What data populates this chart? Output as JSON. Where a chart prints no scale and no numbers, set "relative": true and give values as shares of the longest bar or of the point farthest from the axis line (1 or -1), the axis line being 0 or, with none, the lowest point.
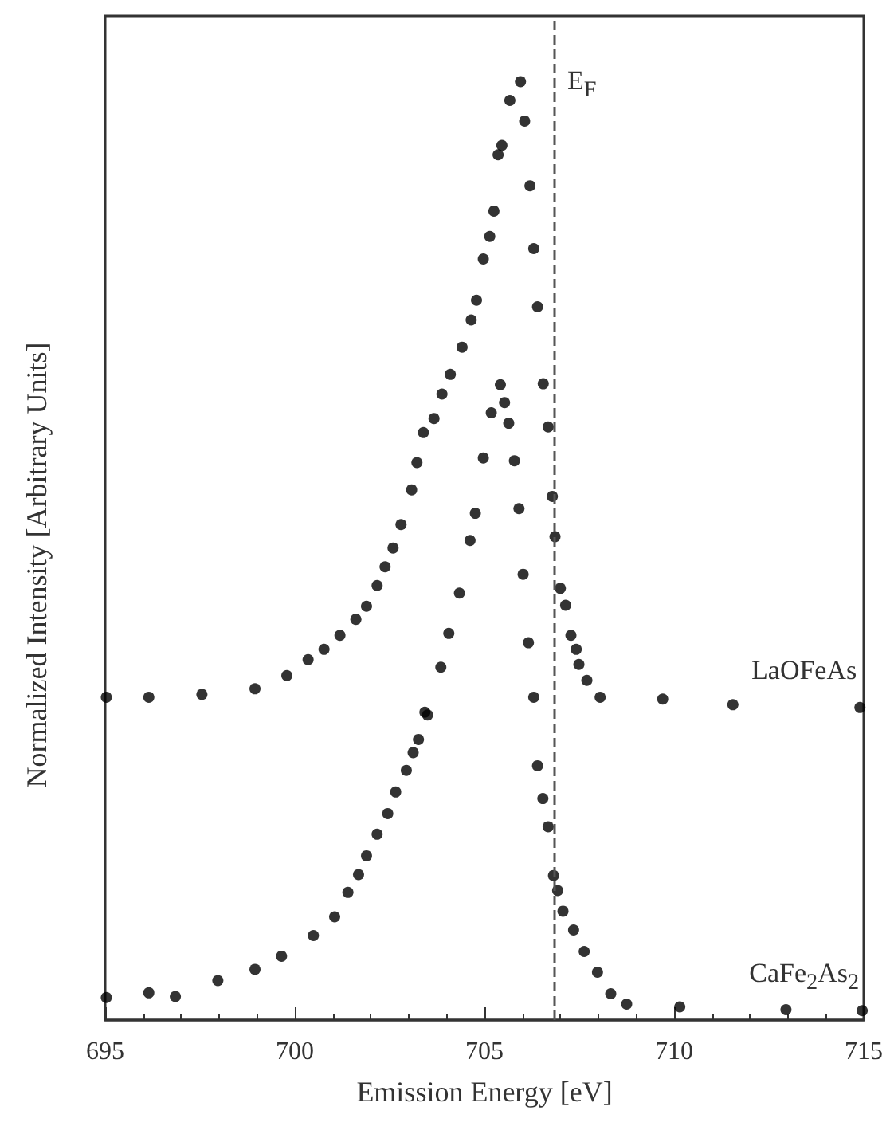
{
  "chart_data": {
    "type": "scatter",
    "relative": true,
    "xlabel": "Emission Energy [eV]",
    "ylabel": "Normalized Intensity [Arbitrary Units]",
    "xlim": [
      695,
      715
    ],
    "xticks": [
      695,
      700,
      705,
      710,
      715
    ],
    "marker": "circle",
    "grid": false,
    "legend": false,
    "ref_lines": [
      {
        "axis": "x",
        "value": 706.85,
        "label": "E$_{F}$",
        "line_style": "dashed",
        "color": "#555555"
      }
    ],
    "series": [
      {
        "name": "LaOFeAs",
        "color": "#000000",
        "x": [
          695.03,
          696.15,
          697.55,
          698.95,
          699.79,
          700.35,
          700.77,
          701.19,
          701.61,
          701.89,
          702.17,
          702.38,
          702.59,
          702.8,
          703.08,
          703.22,
          703.39,
          703.67,
          703.88,
          704.1,
          704.41,
          704.65,
          704.79,
          704.97,
          705.14,
          705.25,
          705.36,
          705.46,
          705.67,
          705.95,
          706.06,
          706.2,
          706.3,
          706.4,
          706.55,
          706.68,
          706.79,
          706.86,
          707.0,
          707.14,
          707.28,
          707.42,
          707.49,
          707.7,
          708.05,
          709.7,
          711.55,
          714.9
        ],
        "values": [
          0.344,
          0.344,
          0.347,
          0.353,
          0.367,
          0.384,
          0.395,
          0.41,
          0.427,
          0.441,
          0.463,
          0.483,
          0.503,
          0.528,
          0.565,
          0.594,
          0.626,
          0.641,
          0.667,
          0.688,
          0.717,
          0.746,
          0.767,
          0.811,
          0.835,
          0.862,
          0.922,
          0.932,
          0.98,
          1.0,
          0.958,
          0.889,
          0.822,
          0.76,
          0.678,
          0.632,
          0.558,
          0.515,
          0.46,
          0.442,
          0.41,
          0.395,
          0.379,
          0.362,
          0.344,
          0.342,
          0.336,
          0.333
        ]
      },
      {
        "name": "CaFe$_{2}$As$_{2}$",
        "color": "#000000",
        "x": [
          695.03,
          696.15,
          696.85,
          697.97,
          698.95,
          699.65,
          700.49,
          701.05,
          701.4,
          701.68,
          701.89,
          702.17,
          702.45,
          702.66,
          702.94,
          703.12,
          703.26,
          703.43,
          703.5,
          703.85,
          704.06,
          704.34,
          704.62,
          704.76,
          704.97,
          705.18,
          705.42,
          705.53,
          705.64,
          705.79,
          705.91,
          706.02,
          706.16,
          706.3,
          706.4,
          706.54,
          706.68,
          706.82,
          706.93,
          707.07,
          707.35,
          707.63,
          707.98,
          708.33,
          708.75,
          710.15,
          712.95,
          714.96
        ],
        "values": [
          0.024,
          0.029,
          0.025,
          0.042,
          0.054,
          0.068,
          0.09,
          0.11,
          0.136,
          0.155,
          0.175,
          0.198,
          0.22,
          0.243,
          0.266,
          0.285,
          0.299,
          0.328,
          0.325,
          0.376,
          0.412,
          0.455,
          0.511,
          0.54,
          0.599,
          0.647,
          0.677,
          0.658,
          0.636,
          0.596,
          0.545,
          0.475,
          0.402,
          0.344,
          0.271,
          0.236,
          0.206,
          0.154,
          0.138,
          0.116,
          0.096,
          0.073,
          0.051,
          0.028,
          0.017,
          0.014,
          0.011,
          0.01
        ]
      }
    ]
  }
}
